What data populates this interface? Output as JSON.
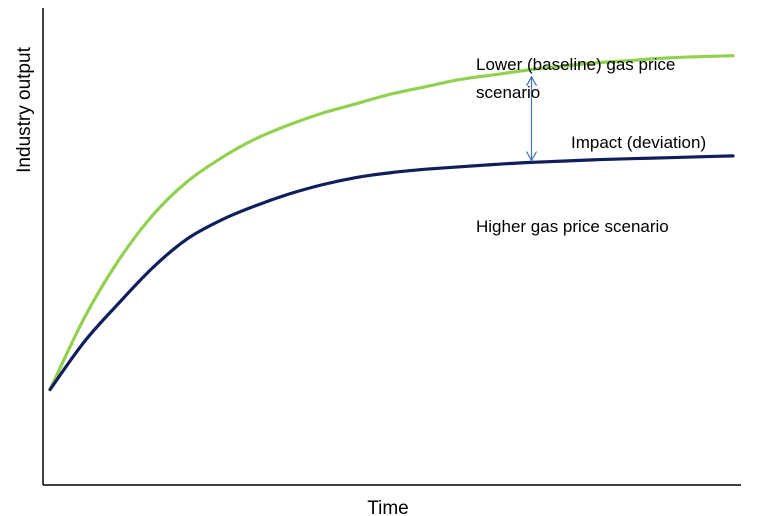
{
  "chart_data": {
    "type": "line",
    "title": "",
    "xlabel": "Time",
    "ylabel": "Industry output",
    "xlim": [
      0,
      10
    ],
    "ylim": [
      0,
      10
    ],
    "grid": false,
    "legend": "none",
    "series": [
      {
        "name": "Lower (baseline) gas price scenario",
        "label_lines": [
          "Lower (baseline) gas price",
          "scenario"
        ],
        "color": "#92D050",
        "x": [
          0,
          0.5,
          1,
          1.5,
          2,
          2.5,
          3,
          3.5,
          4,
          4.5,
          5,
          5.5,
          6,
          6.5,
          7,
          7.5,
          8,
          8.5,
          9,
          9.5,
          10
        ],
        "y": [
          2.0,
          3.5,
          4.7,
          5.65,
          6.35,
          6.85,
          7.25,
          7.55,
          7.8,
          8.0,
          8.2,
          8.35,
          8.5,
          8.6,
          8.7,
          8.78,
          8.85,
          8.9,
          8.95,
          8.98,
          9.0
        ]
      },
      {
        "name": "Higher gas price scenario",
        "color": "#0F1F5C",
        "x": [
          0,
          0.5,
          1,
          1.5,
          2,
          2.5,
          3,
          3.5,
          4,
          4.5,
          5,
          5.5,
          6,
          6.5,
          7,
          7.5,
          8,
          8.5,
          9,
          9.5,
          10
        ],
        "y": [
          2.0,
          3.0,
          3.8,
          4.55,
          5.15,
          5.55,
          5.85,
          6.1,
          6.3,
          6.45,
          6.55,
          6.62,
          6.67,
          6.72,
          6.76,
          6.79,
          6.82,
          6.84,
          6.86,
          6.88,
          6.9
        ]
      }
    ],
    "annotations": [
      {
        "text": "Impact (deviation)",
        "x": 7.05,
        "y_top": 8.6,
        "y_bottom": 6.76,
        "arrow_color": "#4472C4"
      }
    ]
  }
}
